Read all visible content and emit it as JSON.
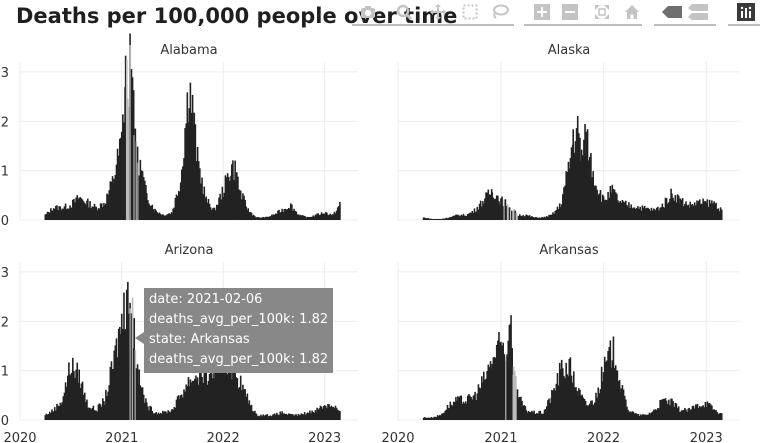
{
  "chart_title": "Deaths per 100,000 people over time",
  "modebar": {
    "icons": [
      "camera-icon",
      "zoom-icon",
      "pan-icon",
      "box-select-icon",
      "lasso-icon",
      "zoom-in-icon",
      "zoom-out-icon",
      "autoscale-icon",
      "home-icon",
      "hover-closest-icon",
      "hover-compare-icon",
      "plotly-logo-icon"
    ]
  },
  "tooltip": {
    "line1": "date: 2021-02-06",
    "line2": "deaths_avg_per_100k: 1.82",
    "line3": "state: Arkansas",
    "line4": "deaths_avg_per_100k: 1.82"
  },
  "chart_data": {
    "type": "bar",
    "layout": "facet-2x2",
    "x_range": [
      "2020-01-01",
      "2023-05-01"
    ],
    "x_ticks": [
      "2020",
      "2021",
      "2022",
      "2023"
    ],
    "y_range": [
      0,
      3.2
    ],
    "y_ticks": [
      "0",
      "1",
      "2",
      "3"
    ],
    "grid": true,
    "bar_color": "#222222",
    "highlight_color": "#bbbbbb",
    "facets": [
      {
        "name": "Alabama",
        "points": [
          [
            "2020-04-01",
            0.1
          ],
          [
            "2020-05-01",
            0.25
          ],
          [
            "2020-06-01",
            0.25
          ],
          [
            "2020-07-01",
            0.3
          ],
          [
            "2020-08-01",
            0.45
          ],
          [
            "2020-09-01",
            0.35
          ],
          [
            "2020-10-01",
            0.25
          ],
          [
            "2020-11-01",
            0.35
          ],
          [
            "2020-12-01",
            0.8
          ],
          [
            "2021-01-01",
            1.6
          ],
          [
            "2021-01-15",
            2.9
          ],
          [
            "2021-02-01",
            3.1
          ],
          [
            "2021-02-15",
            2.2
          ],
          [
            "2021-03-01",
            1.3
          ],
          [
            "2021-04-01",
            0.5
          ],
          [
            "2021-05-01",
            0.2
          ],
          [
            "2021-06-01",
            0.1
          ],
          [
            "2021-07-01",
            0.15
          ],
          [
            "2021-08-01",
            0.8
          ],
          [
            "2021-09-01",
            2.8
          ],
          [
            "2021-09-15",
            2.1
          ],
          [
            "2021-10-01",
            1.2
          ],
          [
            "2021-11-01",
            0.4
          ],
          [
            "2021-12-01",
            0.2
          ],
          [
            "2022-01-01",
            0.6
          ],
          [
            "2022-02-01",
            1.1
          ],
          [
            "2022-02-15",
            1.0
          ],
          [
            "2022-03-01",
            0.6
          ],
          [
            "2022-04-01",
            0.2
          ],
          [
            "2022-05-01",
            0.05
          ],
          [
            "2022-06-01",
            0.05
          ],
          [
            "2022-07-01",
            0.1
          ],
          [
            "2022-08-01",
            0.2
          ],
          [
            "2022-09-01",
            0.3
          ],
          [
            "2022-10-01",
            0.1
          ],
          [
            "2022-11-01",
            0.05
          ],
          [
            "2022-12-01",
            0.1
          ],
          [
            "2023-01-01",
            0.15
          ],
          [
            "2023-02-01",
            0.1
          ],
          [
            "2023-03-01",
            0.35
          ]
        ]
      },
      {
        "name": "Alaska",
        "points": [
          [
            "2020-04-01",
            0.05
          ],
          [
            "2020-05-01",
            0.02
          ],
          [
            "2020-06-01",
            0.02
          ],
          [
            "2020-07-01",
            0.05
          ],
          [
            "2020-08-01",
            0.1
          ],
          [
            "2020-09-01",
            0.1
          ],
          [
            "2020-10-01",
            0.2
          ],
          [
            "2020-11-01",
            0.4
          ],
          [
            "2020-12-01",
            0.6
          ],
          [
            "2021-01-01",
            0.4
          ],
          [
            "2021-02-01",
            0.3
          ],
          [
            "2021-03-01",
            0.1
          ],
          [
            "2021-04-01",
            0.1
          ],
          [
            "2021-05-01",
            0.05
          ],
          [
            "2021-06-01",
            0.05
          ],
          [
            "2021-07-01",
            0.1
          ],
          [
            "2021-08-01",
            0.3
          ],
          [
            "2021-09-01",
            1.1
          ],
          [
            "2021-09-15",
            1.7
          ],
          [
            "2021-10-01",
            1.8
          ],
          [
            "2021-10-15",
            1.3
          ],
          [
            "2021-11-01",
            1.7
          ],
          [
            "2021-12-01",
            0.8
          ],
          [
            "2022-01-01",
            0.4
          ],
          [
            "2022-02-01",
            0.6
          ],
          [
            "2022-03-01",
            0.35
          ],
          [
            "2022-04-01",
            0.3
          ],
          [
            "2022-07-01",
            0.2
          ],
          [
            "2022-08-01",
            0.3
          ],
          [
            "2022-09-01",
            0.55
          ],
          [
            "2022-10-01",
            0.4
          ],
          [
            "2022-11-01",
            0.3
          ],
          [
            "2022-12-01",
            0.35
          ],
          [
            "2023-01-01",
            0.35
          ],
          [
            "2023-02-01",
            0.35
          ],
          [
            "2023-03-01",
            0.15
          ]
        ]
      },
      {
        "name": "Arizona",
        "points": [
          [
            "2020-04-01",
            0.1
          ],
          [
            "2020-05-01",
            0.2
          ],
          [
            "2020-06-01",
            0.4
          ],
          [
            "2020-07-01",
            1.1
          ],
          [
            "2020-08-01",
            0.9
          ],
          [
            "2020-09-01",
            0.3
          ],
          [
            "2020-10-01",
            0.2
          ],
          [
            "2020-11-01",
            0.4
          ],
          [
            "2020-12-01",
            1.1
          ],
          [
            "2021-01-01",
            2.0
          ],
          [
            "2021-01-15",
            2.4
          ],
          [
            "2021-02-01",
            2.4
          ],
          [
            "2021-02-15",
            1.8
          ],
          [
            "2021-03-01",
            0.9
          ],
          [
            "2021-04-01",
            0.3
          ],
          [
            "2021-05-01",
            0.15
          ],
          [
            "2021-06-01",
            0.15
          ],
          [
            "2021-07-01",
            0.2
          ],
          [
            "2021-08-01",
            0.5
          ],
          [
            "2021-09-01",
            0.8
          ],
          [
            "2021-10-01",
            0.9
          ],
          [
            "2021-11-01",
            0.9
          ],
          [
            "2021-12-01",
            1.0
          ],
          [
            "2022-01-01",
            1.2
          ],
          [
            "2022-02-01",
            1.1
          ],
          [
            "2022-03-01",
            0.8
          ],
          [
            "2022-04-01",
            0.4
          ],
          [
            "2022-05-01",
            0.1
          ],
          [
            "2022-06-01",
            0.1
          ],
          [
            "2022-07-01",
            0.1
          ],
          [
            "2022-08-01",
            0.15
          ],
          [
            "2022-09-01",
            0.1
          ],
          [
            "2022-10-01",
            0.1
          ],
          [
            "2022-11-01",
            0.15
          ],
          [
            "2022-12-01",
            0.2
          ],
          [
            "2023-01-01",
            0.3
          ],
          [
            "2023-02-01",
            0.3
          ],
          [
            "2023-03-01",
            0.15
          ]
        ]
      },
      {
        "name": "Arkansas",
        "points": [
          [
            "2020-04-01",
            0.05
          ],
          [
            "2020-05-01",
            0.05
          ],
          [
            "2020-06-01",
            0.1
          ],
          [
            "2020-07-01",
            0.3
          ],
          [
            "2020-08-01",
            0.4
          ],
          [
            "2020-09-01",
            0.4
          ],
          [
            "2020-10-01",
            0.5
          ],
          [
            "2020-11-01",
            0.8
          ],
          [
            "2020-12-01",
            1.2
          ],
          [
            "2021-01-01",
            1.5
          ],
          [
            "2021-01-15",
            1.45
          ],
          [
            "2021-02-06",
            1.82
          ],
          [
            "2021-02-15",
            1.0
          ],
          [
            "2021-03-01",
            0.5
          ],
          [
            "2021-04-01",
            0.2
          ],
          [
            "2021-05-01",
            0.15
          ],
          [
            "2021-06-01",
            0.15
          ],
          [
            "2021-07-01",
            0.5
          ],
          [
            "2021-08-01",
            1.0
          ],
          [
            "2021-09-01",
            1.1
          ],
          [
            "2021-10-01",
            0.6
          ],
          [
            "2021-11-01",
            0.3
          ],
          [
            "2021-12-01",
            0.4
          ],
          [
            "2022-01-01",
            1.0
          ],
          [
            "2022-02-01",
            1.4
          ],
          [
            "2022-02-15",
            1.3
          ],
          [
            "2022-03-01",
            0.7
          ],
          [
            "2022-04-01",
            0.2
          ],
          [
            "2022-05-01",
            0.1
          ],
          [
            "2022-06-01",
            0.1
          ],
          [
            "2022-07-01",
            0.2
          ],
          [
            "2022-08-01",
            0.4
          ],
          [
            "2022-09-01",
            0.35
          ],
          [
            "2022-10-01",
            0.2
          ],
          [
            "2022-11-01",
            0.2
          ],
          [
            "2022-12-01",
            0.3
          ],
          [
            "2023-01-01",
            0.35
          ],
          [
            "2023-02-01",
            0.2
          ],
          [
            "2023-03-01",
            0.1
          ]
        ]
      }
    ]
  }
}
